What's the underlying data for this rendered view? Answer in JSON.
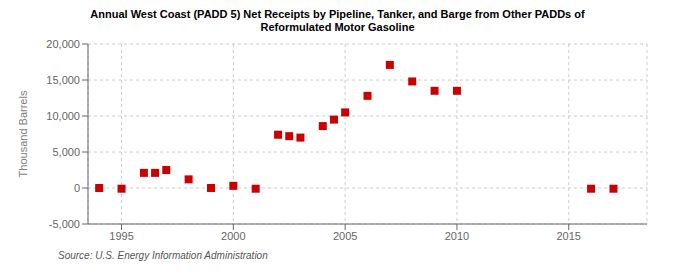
{
  "chart_data": {
    "type": "scatter",
    "title": "Annual West Coast (PADD 5) Net Receipts by Pipeline, Tanker, and Barge from Other PADDs of\nReformulated Motor Gasoline",
    "ylabel": "Thousand Barrels",
    "annotation": "Source: U.S. Energy Information Administration",
    "x": [
      1994,
      1995,
      1996,
      1996.5,
      1997,
      1998,
      1999,
      2000,
      2001,
      2002,
      2002.5,
      2003,
      2004,
      2004.5,
      2005,
      2006,
      2007,
      2008,
      2009,
      2010,
      2016,
      2017
    ],
    "values": [
      0,
      -100,
      2100,
      2100,
      2500,
      1200,
      0,
      300,
      -100,
      7400,
      7200,
      7000,
      8600,
      9500,
      10500,
      12800,
      17100,
      14800,
      13500,
      13500,
      -100,
      -100
    ],
    "color": "#cc0000",
    "marker": "square",
    "xlim": [
      1993.5,
      2018.5
    ],
    "ylim": [
      -5000,
      20000
    ],
    "xticks": [
      1995,
      2000,
      2005,
      2010,
      2015
    ],
    "yticks": [
      {
        "value": -5000,
        "label": "-5,000"
      },
      0,
      {
        "value": 5000,
        "label": "5,000"
      },
      {
        "value": 10000,
        "label": "10,000"
      },
      {
        "value": 15000,
        "label": "15,000"
      },
      {
        "value": 20000,
        "label": "20,000"
      }
    ],
    "grid": true
  }
}
